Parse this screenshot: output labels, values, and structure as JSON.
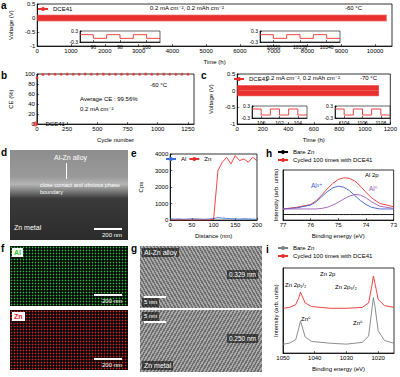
{
  "chart_data": [
    {
      "panel_label": "a",
      "type": "line",
      "x_label": "Time (h)",
      "y_label": "Voltage (V)",
      "xlim": [
        0,
        10500
      ],
      "xticks": [
        0,
        1000,
        2000,
        3000,
        4000,
        5000,
        6000,
        7000,
        8000,
        9000,
        10000
      ],
      "ylim": [
        -1,
        0.5
      ],
      "yticks": [
        -1,
        -0.5,
        0,
        0.5
      ],
      "grid": false,
      "legend": "upper left",
      "annotations": [
        "0.2 mA cm⁻², 0.2 mAh cm⁻²",
        "-60 °C"
      ],
      "series": [
        {
          "name": "DCE41",
          "color": "#e8312f",
          "type": "band",
          "x": [
            0,
            10340
          ],
          "upper": [
            0.1,
            0.1
          ],
          "lower": [
            -0.1,
            -0.1
          ]
        }
      ],
      "insets": [
        {
          "color": "#e8312f",
          "xlim": [
            95,
            101
          ],
          "xticks": [
            96,
            98,
            100
          ],
          "ylim": [
            -0.3,
            0.3
          ],
          "yticks": [
            -0.3,
            0.3
          ],
          "x": [
            95,
            96,
            96,
            97,
            97,
            98,
            98,
            99,
            99,
            100,
            100,
            101
          ],
          "values": [
            0.1,
            0.1,
            -0.1,
            -0.1,
            0.1,
            0.1,
            -0.1,
            -0.1,
            0.1,
            0.1,
            -0.1,
            -0.1
          ]
        },
        {
          "color": "#e8312f",
          "xlim": [
            10335,
            10341
          ],
          "xticks": [
            10336,
            10338,
            10340
          ],
          "ylim": [
            -0.3,
            0.3
          ],
          "yticks": [
            -0.3,
            0.3
          ],
          "x": [
            10335,
            10336,
            10336,
            10337,
            10337,
            10338,
            10338,
            10339,
            10339,
            10340,
            10340,
            10341
          ],
          "values": [
            0.1,
            0.1,
            -0.1,
            -0.1,
            0.1,
            0.1,
            -0.1,
            -0.1,
            0.1,
            0.1,
            -0.1,
            -0.1
          ]
        }
      ]
    },
    {
      "panel_label": "b",
      "type": "scatter",
      "x_label": "Cycle number",
      "y_label": "CE (%)",
      "xlim": [
        0,
        1300
      ],
      "xticks": [
        0,
        250,
        500,
        750,
        1000,
        1250
      ],
      "ylim": [
        0,
        100
      ],
      "yticks": [
        0,
        20,
        40,
        60,
        80,
        100
      ],
      "grid": false,
      "legend": "lower left",
      "annotations": [
        "Average CE : 99.56%",
        "0.2 mA cm⁻²",
        "-60 °C"
      ],
      "series": [
        {
          "name": "DCE41",
          "color": "#e8312f",
          "marker": "circle",
          "x": [
            1,
            50,
            100,
            150,
            200,
            250,
            300,
            350,
            400,
            450,
            500,
            550,
            600,
            650,
            700,
            750,
            800,
            850,
            900,
            950,
            1000,
            1050,
            1100,
            1150,
            1200,
            1250
          ],
          "values": [
            92.0,
            99.1,
            99.4,
            99.6,
            99.5,
            99.7,
            99.6,
            99.5,
            99.8,
            99.6,
            99.4,
            99.7,
            99.6,
            99.5,
            99.6,
            99.7,
            99.5,
            99.6,
            99.8,
            99.6,
            99.5,
            99.7,
            99.6,
            99.4,
            99.6,
            99.5
          ]
        }
      ]
    },
    {
      "panel_label": "c",
      "type": "line",
      "x_label": "Time (h)",
      "y_label": "Voltage (V)",
      "xlim": [
        0,
        1200
      ],
      "xticks": [
        0,
        200,
        400,
        600,
        800,
        1000,
        1200
      ],
      "ylim": [
        -1,
        0.5
      ],
      "yticks": [
        -1,
        -0.5,
        0,
        0.5
      ],
      "grid": false,
      "legend": "upper left",
      "annotations": [
        "0.2 mA cm⁻², 0.2 mAh cm⁻²",
        "-70 °C"
      ],
      "series": [
        {
          "name": "DCE41",
          "color": "#e8312f",
          "type": "band",
          "x": [
            0,
            1110
          ],
          "upper": [
            0.15,
            0.15
          ],
          "lower": [
            -0.15,
            -0.15
          ]
        }
      ],
      "insets": [
        {
          "color": "#e8312f",
          "xlim": [
            99,
            105
          ],
          "xticks": [
            100,
            102,
            104
          ],
          "ylim": [
            -0.3,
            0.3
          ],
          "yticks": [
            -0.3,
            0.3
          ],
          "x": [
            99,
            100,
            100,
            101,
            101,
            102,
            102,
            103,
            103,
            104,
            104,
            105
          ],
          "values": [
            0.15,
            0.15,
            -0.15,
            -0.15,
            0.15,
            0.15,
            -0.15,
            -0.15,
            0.15,
            0.15,
            -0.15,
            -0.15
          ]
        },
        {
          "color": "#e8312f",
          "xlim": [
            1103,
            1109
          ],
          "xticks": [
            1104,
            1106,
            1108
          ],
          "ylim": [
            -0.3,
            0.3
          ],
          "yticks": [
            -0.3,
            0.3
          ],
          "x": [
            1103,
            1104,
            1104,
            1105,
            1105,
            1106,
            1106,
            1107,
            1107,
            1108,
            1108,
            1109
          ],
          "values": [
            0.15,
            0.15,
            -0.15,
            -0.15,
            0.15,
            0.15,
            -0.15,
            -0.15,
            0.15,
            0.15,
            -0.15,
            -0.15
          ]
        }
      ]
    },
    {
      "panel_label": "e",
      "type": "line",
      "x_label": "Distance (nm)",
      "y_label": "Cps",
      "xlim": [
        0,
        200
      ],
      "xticks": [
        0,
        50,
        100,
        150,
        200
      ],
      "ylim": [
        0,
        4000
      ],
      "yticks": [
        0,
        1000,
        2000,
        3000,
        4000
      ],
      "grid": false,
      "legend": "upper left",
      "series": [
        {
          "name": "Al",
          "color": "#3b6fd8",
          "x": [
            0,
            10,
            20,
            30,
            40,
            50,
            60,
            70,
            80,
            90,
            100,
            110,
            120,
            130,
            140,
            150,
            160,
            170,
            180,
            190,
            200
          ],
          "values": [
            80,
            60,
            70,
            50,
            60,
            80,
            70,
            60,
            50,
            70,
            90,
            150,
            120,
            100,
            80,
            70,
            60,
            80,
            70,
            60,
            50
          ]
        },
        {
          "name": "Zn",
          "color": "#e8312f",
          "x": [
            0,
            10,
            20,
            30,
            40,
            50,
            60,
            70,
            80,
            90,
            100,
            110,
            120,
            130,
            140,
            150,
            160,
            170,
            180,
            190,
            200
          ],
          "values": [
            0,
            0,
            0,
            0,
            0,
            0,
            0,
            0,
            0,
            0,
            50,
            3000,
            3500,
            3800,
            3400,
            3900,
            3600,
            3700,
            3500,
            3800,
            3600
          ]
        }
      ]
    },
    {
      "panel_label": "h",
      "type": "line",
      "x_label": "Binding energy (eV)",
      "y_label": "Intensity (arb. units)",
      "xlim": [
        77,
        73
      ],
      "xticks": [
        77,
        76,
        75,
        74,
        73
      ],
      "ylim": [
        0,
        9
      ],
      "grid": false,
      "legend": "top",
      "tick_labels": "x",
      "annotations": [
        "Al 2p"
      ],
      "series": [
        {
          "name": "Bare Zn",
          "color": "#000000",
          "x": [
            77,
            76.5,
            76,
            75.8,
            75.6,
            75.4,
            75.2,
            75,
            74.8,
            74.6,
            74.4,
            74.2,
            74,
            73.8,
            73.5,
            73
          ],
          "values": [
            1,
            1,
            1,
            1,
            1,
            1,
            1,
            1,
            1,
            1,
            1,
            1,
            1,
            1,
            1,
            1
          ]
        },
        {
          "name": "Cycled 100 times with DCE41",
          "color": "#e8312f",
          "x": [
            77,
            76.5,
            76,
            75.8,
            75.6,
            75.4,
            75.2,
            75,
            74.8,
            74.6,
            74.4,
            74.2,
            74,
            73.8,
            73.5,
            73
          ],
          "values": [
            2.0,
            2.3,
            2.8,
            3.5,
            4.5,
            5.6,
            6.6,
            7.3,
            7.6,
            7.5,
            7.0,
            6.1,
            5.0,
            4.0,
            3.0,
            2.4
          ]
        }
      ],
      "fits": [
        {
          "name": "Al³⁺",
          "color": "#3a5fcd",
          "x": [
            77,
            76.5,
            76,
            75.8,
            75.6,
            75.4,
            75.2,
            75,
            74.8,
            74.6,
            74.4,
            74.2,
            74,
            73.8,
            73.5,
            73
          ],
          "values": [
            2.0,
            2.2,
            2.7,
            3.3,
            4.2,
            5.1,
            5.8,
            6.1,
            5.9,
            5.3,
            4.4,
            3.5,
            2.8,
            2.3,
            2.0,
            2.0
          ]
        },
        {
          "name": "Al⁰",
          "color": "#9b59b6",
          "x": [
            77,
            76.5,
            76,
            75.8,
            75.6,
            75.4,
            75.2,
            75,
            74.8,
            74.6,
            74.4,
            74.2,
            74,
            73.8,
            73.5,
            73
          ],
          "values": [
            2.0,
            2.0,
            2.0,
            2.0,
            2.1,
            2.3,
            2.7,
            3.2,
            3.8,
            4.3,
            4.6,
            4.5,
            4.0,
            3.3,
            2.5,
            2.1
          ]
        }
      ]
    },
    {
      "panel_label": "i",
      "type": "line",
      "x_label": "Binding energy (eV)",
      "y_label": "Intensity (arb. units)",
      "xlim": [
        1050,
        1015
      ],
      "xticks": [
        1050,
        1040,
        1030,
        1020
      ],
      "ylim": [
        0,
        9.5
      ],
      "grid": false,
      "legend": "top",
      "tick_labels": "x",
      "annotations": [
        "Zn 2p",
        "Zn 2p₁/₂",
        "Zn 2p₃/₂",
        "Zn⁰",
        "Zn⁰"
      ],
      "series": [
        {
          "name": "Bare Zn",
          "color": "#808080",
          "x": [
            1050,
            1048,
            1046,
            1045,
            1044.5,
            1044,
            1043,
            1041,
            1038,
            1035,
            1030,
            1025,
            1023,
            1022,
            1021.5,
            1021,
            1020,
            1018,
            1015
          ],
          "values": [
            1.0,
            1.1,
            1.5,
            2.8,
            3.6,
            3.0,
            1.8,
            1.3,
            1.2,
            1.1,
            1.0,
            1.2,
            1.9,
            4.8,
            6.2,
            5.2,
            2.5,
            1.4,
            1.1
          ]
        },
        {
          "name": "Cycled 100 times with DCE41",
          "color": "#e8312f",
          "x": [
            1050,
            1048,
            1046,
            1045,
            1044.5,
            1044,
            1043,
            1041,
            1038,
            1035,
            1030,
            1025,
            1023,
            1022,
            1021.5,
            1021,
            1020,
            1018,
            1015
          ],
          "values": [
            5.0,
            5.1,
            5.4,
            6.2,
            6.8,
            6.4,
            5.6,
            5.2,
            5.1,
            5.0,
            5.0,
            5.1,
            5.6,
            7.5,
            8.6,
            7.8,
            6.0,
            5.3,
            5.1
          ]
        }
      ]
    }
  ],
  "images": [
    {
      "panel_label": "d",
      "texts": [
        "Al-Zn alloy",
        "close contact and obvious phase boundary",
        "Zn metal",
        "200 nm"
      ]
    },
    {
      "panel_label": "f",
      "maps": [
        {
          "element": "Al",
          "color": "#2fbf3a"
        },
        {
          "element": "Zn",
          "color": "#e0262a"
        }
      ],
      "scale_bar": "200 nm"
    },
    {
      "panel_label": "g",
      "regions": [
        {
          "label": "Al-Zn alloy",
          "spacing": "0.329 nm",
          "scale_bar": "5 nm"
        },
        {
          "label": "Zn metal",
          "spacing": "0.250 nm",
          "scale_bar": "5 nm"
        }
      ]
    }
  ]
}
